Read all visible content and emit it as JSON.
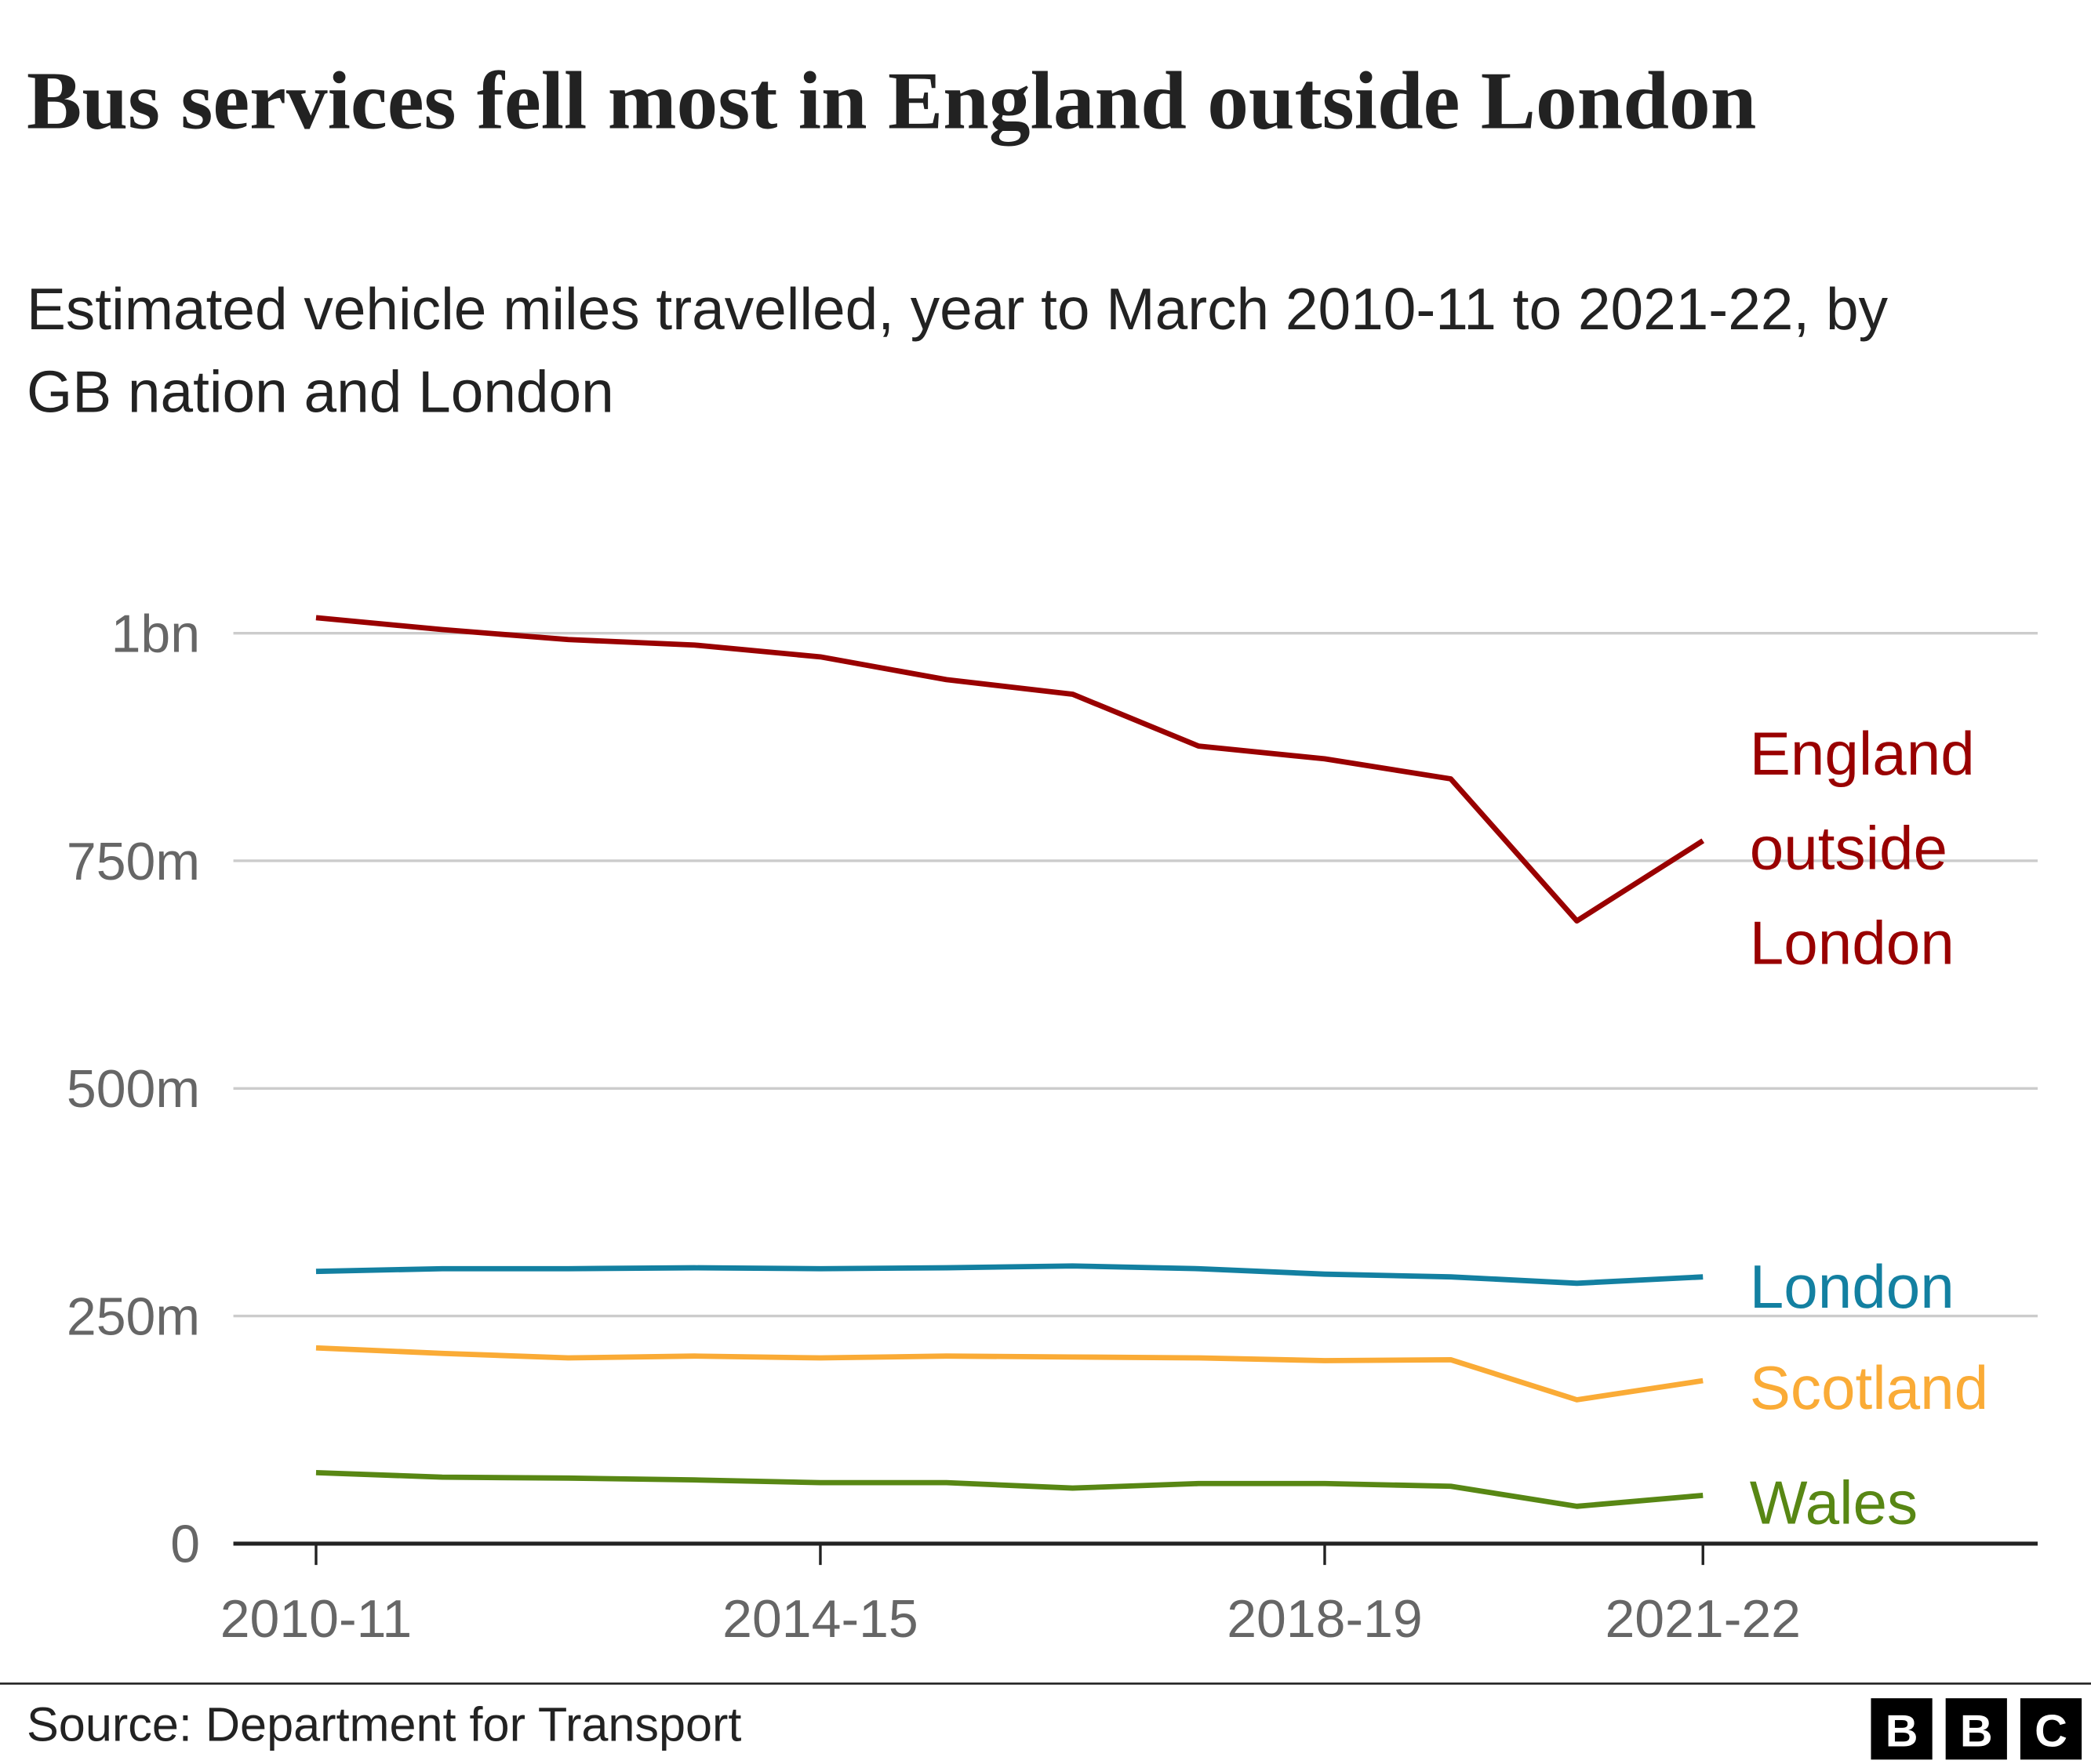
{
  "chart_data": {
    "type": "line",
    "title": "Bus services fell most in England outside London",
    "subtitle": "Estimated vehicle miles travelled, year to March 2010-11 to 2021-22, by GB nation and London",
    "categories": [
      "2010-11",
      null,
      null,
      null,
      "2014-15",
      null,
      null,
      null,
      "2018-19",
      null,
      null,
      "2021-22"
    ],
    "series": [
      {
        "name": "England outside London",
        "color": "#990000",
        "values": [
          1017,
          1004,
          993,
          987,
          974,
          949,
          933,
          876,
          862,
          840,
          684,
          772
        ]
      },
      {
        "name": "London",
        "color": "#1380a1",
        "values": [
          299,
          302,
          302,
          303,
          302,
          303,
          305,
          302,
          296,
          293,
          286,
          293
        ]
      },
      {
        "name": "Scotland",
        "color": "#faab36",
        "values": [
          215,
          209,
          204,
          206,
          204,
          206,
          205,
          204,
          201,
          202,
          158,
          179
        ]
      },
      {
        "name": "Wales",
        "color": "#588714",
        "values": [
          78,
          73,
          72,
          70,
          67,
          67,
          61,
          66,
          66,
          63,
          41,
          53
        ]
      }
    ],
    "ylim": [
      0,
      1000
    ],
    "yticks": [
      0,
      {
        "value": 250,
        "label": "250m"
      },
      {
        "value": 500,
        "label": "500m"
      },
      {
        "value": 750,
        "label": "750m"
      },
      {
        "value": 1000,
        "label": "1bn"
      }
    ],
    "grid": true
  },
  "source": "Source: Department for Transport",
  "logo": [
    "B",
    "B",
    "C"
  ]
}
